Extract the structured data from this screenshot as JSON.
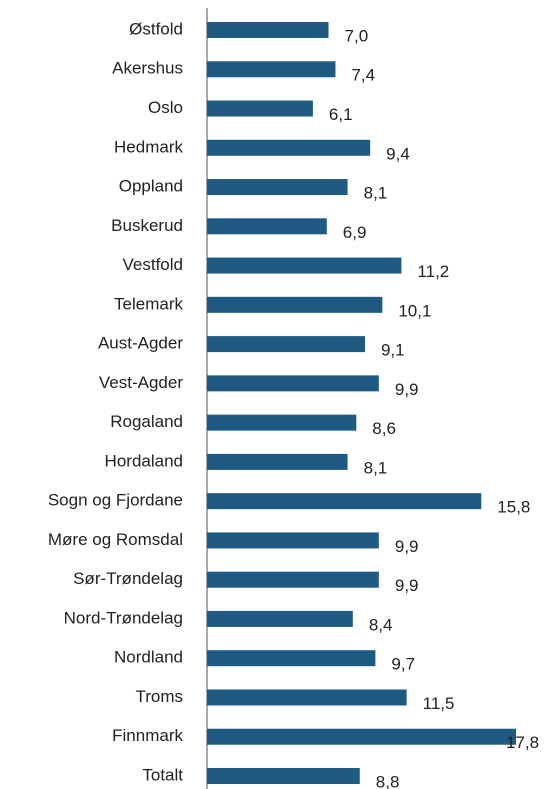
{
  "chart_data": {
    "type": "barh",
    "categories": [
      "Østfold",
      "Akershus",
      "Oslo",
      "Hedmark",
      "Oppland",
      "Buskerud",
      "Vestfold",
      "Telemark",
      "Aust-Agder",
      "Vest-Agder",
      "Rogaland",
      "Hordaland",
      "Sogn og Fjordane",
      "Møre og Romsdal",
      "Sør-Trøndelag",
      "Nord-Trøndelag",
      "Nordland",
      "Troms",
      "Finnmark",
      "Totalt"
    ],
    "values": [
      7.0,
      7.4,
      6.1,
      9.4,
      8.1,
      6.9,
      11.2,
      10.1,
      9.1,
      9.9,
      8.6,
      8.1,
      15.8,
      9.9,
      9.9,
      8.4,
      9.7,
      11.5,
      17.8,
      8.8
    ],
    "value_labels": [
      "7,0",
      "7,4",
      "6,1",
      "9,4",
      "8,1",
      "6,9",
      "11,2",
      "10,1",
      "9,1",
      "9,9",
      "8,6",
      "8,1",
      "15,8",
      "9,9",
      "9,9",
      "8,4",
      "9,7",
      "11,5",
      "17,8",
      "8,8"
    ],
    "color": "#1f5a82"
  }
}
